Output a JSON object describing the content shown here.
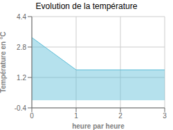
{
  "chart_data": {
    "type": "area",
    "title": "Evolution de la température",
    "xlabel": "heure par heure",
    "ylabel": "Température en °C",
    "x": [
      0,
      1,
      3
    ],
    "values": [
      3.3,
      1.6,
      1.6
    ],
    "color": "#5bbcd6",
    "xlim": [
      0,
      3
    ],
    "ylim": [
      -0.4,
      4.4
    ],
    "xticks": [
      0,
      1,
      2,
      3
    ],
    "yticks": [
      -0.4,
      1.2,
      2.8,
      4.4
    ],
    "grid": true
  }
}
